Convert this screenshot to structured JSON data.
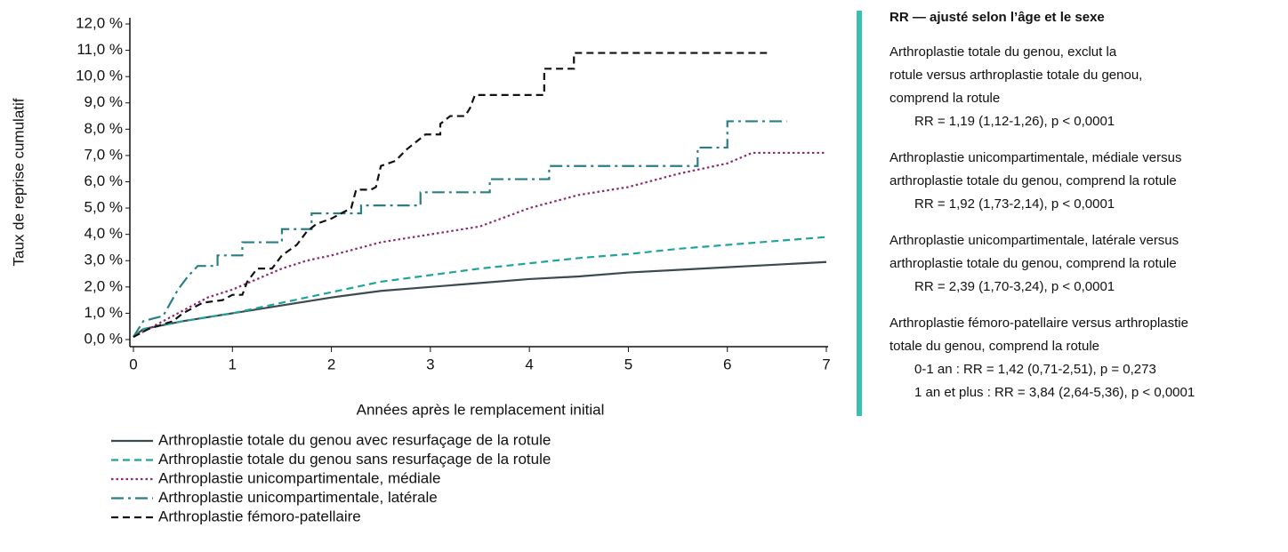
{
  "chart_data": {
    "type": "line",
    "step": true,
    "y_label": "Taux de reprise cumulatif",
    "x_label": "Années après le remplacement initial",
    "xlim": [
      0,
      7
    ],
    "xticks": [
      0,
      1,
      2,
      3,
      4,
      5,
      6,
      7
    ],
    "ylim": [
      0,
      12
    ],
    "yticks": [
      {
        "value": 0,
        "label": "0,0 %"
      },
      {
        "value": 1,
        "label": "1,0 %"
      },
      {
        "value": 2,
        "label": "2,0 %"
      },
      {
        "value": 3,
        "label": "3,0 %"
      },
      {
        "value": 4,
        "label": "4,0 %"
      },
      {
        "value": 5,
        "label": "5,0 %"
      },
      {
        "value": 6,
        "label": "6,0 %"
      },
      {
        "value": 7,
        "label": "7,0 %"
      },
      {
        "value": 8,
        "label": "8,0 %"
      },
      {
        "value": 9,
        "label": "9,0 %"
      },
      {
        "value": 10,
        "label": "10,0 %"
      },
      {
        "value": 11,
        "label": "11,0 %"
      },
      {
        "value": 12,
        "label": "12,0 %"
      }
    ],
    "series": [
      {
        "name": "Arthroplastie totale du genou avec resurfaçage de la rotule",
        "color": "#3b4a4f",
        "line_style": "solid",
        "x": [
          0,
          0.1,
          0.5,
          1,
          1.5,
          2,
          2.5,
          3,
          3.5,
          4,
          4.5,
          5,
          5.5,
          6,
          6.5,
          7
        ],
        "values": [
          0.1,
          0.4,
          0.7,
          1.0,
          1.3,
          1.6,
          1.85,
          2.0,
          2.15,
          2.3,
          2.4,
          2.55,
          2.65,
          2.75,
          2.85,
          2.95
        ]
      },
      {
        "name": "Arthroplastie totale du genou sans resurfaçage de la rotule",
        "color": "#1fa39a",
        "line_style": "dashed",
        "x": [
          0,
          0.1,
          0.5,
          1,
          1.5,
          2,
          2.5,
          3,
          3.5,
          4,
          4.5,
          5,
          5.5,
          6,
          6.5,
          7
        ],
        "values": [
          0.1,
          0.4,
          0.7,
          1.0,
          1.4,
          1.8,
          2.2,
          2.45,
          2.7,
          2.9,
          3.1,
          3.25,
          3.45,
          3.6,
          3.75,
          3.9
        ]
      },
      {
        "name": "Arthroplastie unicompartimentale, médiale",
        "color": "#8b2a6e",
        "line_style": "dotted",
        "x": [
          0,
          0.25,
          0.5,
          0.75,
          1,
          1.25,
          1.5,
          1.75,
          2,
          2.5,
          3,
          3.5,
          4,
          4.5,
          5,
          5.5,
          6,
          6.25,
          7
        ],
        "values": [
          0.1,
          0.6,
          1.1,
          1.6,
          1.9,
          2.3,
          2.7,
          3.0,
          3.2,
          3.7,
          4.0,
          4.3,
          5.0,
          5.5,
          5.8,
          6.3,
          6.7,
          7.1,
          7.1
        ]
      },
      {
        "name": "Arthroplastie unicompartimentale, latérale",
        "color": "#2b7d86",
        "line_style": "dashdot",
        "x": [
          0,
          0.1,
          0.1,
          0.3,
          0.45,
          0.55,
          0.65,
          0.85,
          0.85,
          1.1,
          1.1,
          1.5,
          1.5,
          1.8,
          1.8,
          2.3,
          2.3,
          2.9,
          2.9,
          3.6,
          3.6,
          4.2,
          4.2,
          5.7,
          5.7,
          6.0,
          6.0,
          6.6
        ],
        "values": [
          0.1,
          0.7,
          0.7,
          0.9,
          1.9,
          2.4,
          2.8,
          2.8,
          3.2,
          3.2,
          3.7,
          3.7,
          4.2,
          4.2,
          4.8,
          4.8,
          5.1,
          5.1,
          5.6,
          5.6,
          6.1,
          6.1,
          6.6,
          6.6,
          7.3,
          7.3,
          8.3,
          8.3
        ]
      },
      {
        "name": "Arthroplastie fémoro-patellaire",
        "color": "#111111",
        "line_style": "dashed",
        "x": [
          0,
          0.15,
          0.4,
          0.5,
          0.7,
          0.9,
          1.0,
          1.1,
          1.15,
          1.25,
          1.4,
          1.5,
          1.65,
          1.75,
          1.85,
          2.0,
          2.1,
          2.2,
          2.25,
          2.4,
          2.45,
          2.5,
          2.65,
          2.75,
          2.85,
          2.95,
          3.1,
          3.1,
          3.2,
          3.35,
          3.4,
          3.45,
          4.15,
          4.15,
          4.45,
          4.45,
          6.4
        ],
        "values": [
          0.1,
          0.4,
          0.7,
          1.0,
          1.4,
          1.5,
          1.7,
          1.7,
          2.2,
          2.7,
          2.7,
          3.2,
          3.6,
          4.1,
          4.4,
          4.6,
          4.8,
          5.0,
          5.7,
          5.7,
          5.8,
          6.6,
          6.8,
          7.2,
          7.5,
          7.8,
          7.8,
          8.2,
          8.5,
          8.5,
          8.8,
          9.3,
          9.3,
          10.3,
          10.3,
          10.9,
          10.9
        ]
      }
    ]
  },
  "panel": {
    "title": "RR — ajusté selon l’âge et le sexe",
    "items": [
      {
        "lines": [
          "Arthroplastie totale du genou, exclut la",
          "rotule versus arthroplastie totale du genou,",
          "comprend la rotule"
        ],
        "results": [
          "RR = 1,19 (1,12-1,26), p < 0,0001"
        ]
      },
      {
        "lines": [
          "Arthroplastie unicompartimentale, médiale versus",
          "arthroplastie totale du genou, comprend la rotule"
        ],
        "results": [
          "RR = 1,92 (1,73-2,14), p < 0,0001"
        ]
      },
      {
        "lines": [
          "Arthroplastie unicompartimentale, latérale versus",
          "arthroplastie totale du genou, comprend la rotule"
        ],
        "results": [
          "RR = 2,39 (1,70-3,24), p < 0,0001"
        ]
      },
      {
        "lines": [
          "Arthroplastie fémoro-patellaire versus arthroplastie",
          "totale du genou, comprend la rotule"
        ],
        "results": [
          "0-1 an : RR = 1,42 (0,71-2,51), p = 0,273",
          "1 an et plus : RR = 3,84 (2,64-5,36), p < 0,0001"
        ]
      }
    ]
  }
}
